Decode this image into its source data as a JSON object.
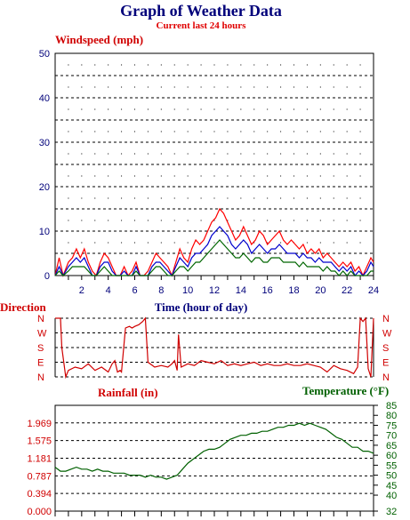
{
  "header": {
    "title": "Graph of Weather Data",
    "subtitle": "Current last 24 hours"
  },
  "colors": {
    "gust": "#ff0000",
    "average": "#0000cc",
    "minimum": "#006600",
    "direction": "#d00000",
    "temperature": "#006000",
    "axis_blue": "#00007a"
  },
  "chart_data": [
    {
      "type": "line",
      "ylabel": "Windspeed (mph)",
      "xlabel": "Time (hour of day)",
      "xlim": [
        0,
        24
      ],
      "ylim": [
        0,
        50
      ],
      "x_ticks": [
        "2",
        "4",
        "6",
        "8",
        "10",
        "12",
        "14",
        "16",
        "18",
        "20",
        "22",
        "24"
      ],
      "y_ticks": [
        "0",
        "10",
        "20",
        "30",
        "40",
        "50"
      ],
      "grid": true,
      "series": [
        {
          "color": "#ff0000",
          "x": [
            0.0,
            0.3,
            0.6,
            1.0,
            1.3,
            1.6,
            1.9,
            2.2,
            2.5,
            2.8,
            3.1,
            3.4,
            3.7,
            4.0,
            4.3,
            4.6,
            4.9,
            5.2,
            5.5,
            5.8,
            6.1,
            6.4,
            6.7,
            7.0,
            7.3,
            7.6,
            7.9,
            8.2,
            8.5,
            8.8,
            9.1,
            9.4,
            9.7,
            10.0,
            10.3,
            10.6,
            10.9,
            11.2,
            11.5,
            11.8,
            12.1,
            12.4,
            12.7,
            13.0,
            13.3,
            13.6,
            13.9,
            14.2,
            14.5,
            14.8,
            15.1,
            15.4,
            15.7,
            16.0,
            16.3,
            16.6,
            16.9,
            17.2,
            17.5,
            17.8,
            18.1,
            18.4,
            18.7,
            19.0,
            19.3,
            19.6,
            19.9,
            20.2,
            20.5,
            20.8,
            21.1,
            21.4,
            21.7,
            22.0,
            22.3,
            22.6,
            22.9,
            23.2,
            23.5,
            23.8,
            24.0
          ],
          "values": [
            0,
            4,
            0,
            3,
            4,
            6,
            4,
            6,
            3,
            1,
            0,
            3,
            5,
            4,
            2,
            0,
            0,
            2,
            0,
            1,
            3,
            0,
            0,
            1,
            3,
            5,
            4,
            3,
            2,
            0,
            3,
            6,
            4,
            3,
            6,
            8,
            7,
            8,
            10,
            12,
            13,
            15,
            14,
            12,
            10,
            8,
            9,
            11,
            9,
            7,
            8,
            10,
            9,
            7,
            8,
            9,
            10,
            8,
            7,
            8,
            7,
            6,
            7,
            5,
            6,
            5,
            6,
            4,
            5,
            4,
            3,
            2,
            3,
            2,
            3,
            1,
            2,
            0,
            2,
            4,
            3
          ]
        },
        {
          "color": "#0000cc",
          "x": [
            0.0,
            0.3,
            0.6,
            1.0,
            1.3,
            1.6,
            1.9,
            2.2,
            2.5,
            2.8,
            3.1,
            3.4,
            3.7,
            4.0,
            4.3,
            4.6,
            4.9,
            5.2,
            5.5,
            5.8,
            6.1,
            6.4,
            6.7,
            7.0,
            7.3,
            7.6,
            7.9,
            8.2,
            8.5,
            8.8,
            9.1,
            9.4,
            9.7,
            10.0,
            10.3,
            10.6,
            10.9,
            11.2,
            11.5,
            11.8,
            12.1,
            12.4,
            12.7,
            13.0,
            13.3,
            13.6,
            13.9,
            14.2,
            14.5,
            14.8,
            15.1,
            15.4,
            15.7,
            16.0,
            16.3,
            16.6,
            16.9,
            17.2,
            17.5,
            17.8,
            18.1,
            18.4,
            18.7,
            19.0,
            19.3,
            19.6,
            19.9,
            20.2,
            20.5,
            20.8,
            21.1,
            21.4,
            21.7,
            22.0,
            22.3,
            22.6,
            22.9,
            23.2,
            23.5,
            23.8,
            24.0
          ],
          "values": [
            0,
            2,
            0,
            2,
            3,
            4,
            3,
            4,
            2,
            0,
            0,
            2,
            3,
            3,
            1,
            0,
            0,
            1,
            0,
            0,
            2,
            0,
            0,
            0,
            2,
            3,
            3,
            2,
            1,
            0,
            2,
            4,
            3,
            2,
            4,
            5,
            5,
            6,
            7,
            9,
            10,
            11,
            10,
            9,
            7,
            6,
            7,
            8,
            7,
            5,
            6,
            7,
            6,
            5,
            6,
            6,
            7,
            6,
            5,
            5,
            5,
            4,
            5,
            4,
            4,
            3,
            4,
            3,
            3,
            3,
            2,
            1,
            2,
            1,
            2,
            0,
            1,
            0,
            1,
            3,
            2
          ]
        },
        {
          "color": "#006600",
          "x": [
            0.0,
            0.3,
            0.6,
            1.0,
            1.3,
            1.6,
            1.9,
            2.2,
            2.5,
            2.8,
            3.1,
            3.4,
            3.7,
            4.0,
            4.3,
            4.6,
            4.9,
            5.2,
            5.5,
            5.8,
            6.1,
            6.4,
            6.7,
            7.0,
            7.3,
            7.6,
            7.9,
            8.2,
            8.5,
            8.8,
            9.1,
            9.4,
            9.7,
            10.0,
            10.3,
            10.6,
            10.9,
            11.2,
            11.5,
            11.8,
            12.1,
            12.4,
            12.7,
            13.0,
            13.3,
            13.6,
            13.9,
            14.2,
            14.5,
            14.8,
            15.1,
            15.4,
            15.7,
            16.0,
            16.3,
            16.6,
            16.9,
            17.2,
            17.5,
            17.8,
            18.1,
            18.4,
            18.7,
            19.0,
            19.3,
            19.6,
            19.9,
            20.2,
            20.5,
            20.8,
            21.1,
            21.4,
            21.7,
            22.0,
            22.3,
            22.6,
            22.9,
            23.2,
            23.5,
            23.8,
            24.0
          ],
          "values": [
            0,
            1,
            0,
            1,
            2,
            2,
            2,
            2,
            1,
            0,
            0,
            1,
            2,
            1,
            0,
            0,
            0,
            0,
            0,
            0,
            1,
            0,
            0,
            0,
            1,
            2,
            2,
            1,
            0,
            0,
            1,
            2,
            2,
            1,
            2,
            3,
            3,
            4,
            5,
            6,
            7,
            8,
            7,
            6,
            5,
            4,
            4,
            5,
            4,
            3,
            4,
            4,
            3,
            3,
            4,
            4,
            4,
            3,
            3,
            3,
            3,
            2,
            3,
            2,
            2,
            2,
            2,
            1,
            2,
            1,
            1,
            0,
            1,
            0,
            1,
            0,
            0,
            0,
            0,
            1,
            1
          ]
        }
      ]
    },
    {
      "type": "line",
      "ylabel": "Direction",
      "xlim": [
        0,
        24
      ],
      "y_ticks": [
        "N",
        "W",
        "S",
        "E",
        "N"
      ],
      "grid": true,
      "series": [
        {
          "color": "#d00000",
          "x": [
            0.0,
            0.4,
            0.5,
            0.8,
            1.0,
            1.5,
            2.0,
            2.5,
            3.0,
            3.5,
            4.0,
            4.3,
            4.5,
            4.7,
            4.9,
            5.0,
            5.3,
            5.6,
            5.8,
            6.0,
            6.3,
            6.6,
            6.8,
            7.0,
            7.5,
            8.0,
            8.5,
            8.8,
            9.0,
            9.2,
            9.3,
            9.5,
            10.0,
            10.5,
            11.0,
            11.5,
            12.0,
            12.5,
            13.0,
            13.5,
            14.0,
            14.5,
            15.0,
            15.5,
            16.0,
            16.5,
            17.0,
            17.5,
            18.0,
            18.5,
            19.0,
            19.5,
            20.0,
            20.5,
            21.0,
            21.5,
            22.0,
            22.5,
            22.8,
            23.0,
            23.2,
            23.4,
            23.6,
            23.8,
            24.0
          ],
          "values": [
            360,
            360,
            180,
            0,
            40,
            60,
            50,
            80,
            40,
            60,
            30,
            80,
            100,
            30,
            40,
            30,
            300,
            310,
            300,
            310,
            320,
            340,
            360,
            90,
            60,
            70,
            60,
            80,
            100,
            40,
            260,
            60,
            80,
            70,
            100,
            90,
            80,
            100,
            70,
            80,
            70,
            80,
            90,
            70,
            80,
            70,
            70,
            80,
            70,
            70,
            80,
            70,
            60,
            30,
            70,
            50,
            40,
            20,
            60,
            360,
            340,
            360,
            50,
            0,
            360
          ]
        }
      ]
    },
    {
      "type": "line",
      "ylabel": "Rainfall (in)",
      "y2label": "Temperature (°F)",
      "xlim": [
        0,
        24
      ],
      "ylim": [
        0,
        2.362
      ],
      "y2lim": [
        32,
        85
      ],
      "y_ticks": [
        "0.000",
        "0.394",
        "0.787",
        "1.181",
        "1.575",
        "1.969"
      ],
      "y2_ticks": [
        "32",
        "40",
        "45",
        "50",
        "55",
        "60",
        "65",
        "70",
        "75",
        "80",
        "85"
      ],
      "grid": true,
      "series": [
        {
          "color": "#006000",
          "axis": "right",
          "x": [
            0.0,
            0.4,
            0.8,
            1.2,
            1.6,
            2.0,
            2.4,
            2.8,
            3.2,
            3.6,
            4.0,
            4.4,
            4.8,
            5.2,
            5.6,
            6.0,
            6.4,
            6.8,
            7.2,
            7.6,
            8.0,
            8.4,
            8.8,
            9.2,
            9.6,
            10.0,
            10.4,
            10.8,
            11.2,
            11.6,
            12.0,
            12.4,
            12.8,
            13.2,
            13.6,
            14.0,
            14.4,
            14.8,
            15.2,
            15.6,
            16.0,
            16.4,
            16.8,
            17.2,
            17.6,
            18.0,
            18.4,
            18.8,
            19.2,
            19.6,
            20.0,
            20.4,
            20.8,
            21.2,
            21.6,
            22.0,
            22.4,
            22.8,
            23.2,
            23.6,
            24.0
          ],
          "values": [
            54,
            52,
            52,
            53,
            54,
            53,
            53,
            52,
            53,
            52,
            52,
            51,
            51,
            51,
            50,
            50,
            50,
            49,
            50,
            49,
            49,
            48,
            49,
            50,
            53,
            56,
            58,
            60,
            62,
            63,
            63,
            64,
            66,
            68,
            69,
            70,
            70,
            71,
            71,
            72,
            72,
            73,
            74,
            74,
            75,
            75,
            76,
            75,
            76,
            75,
            74,
            73,
            71,
            69,
            68,
            66,
            64,
            64,
            62,
            62,
            61
          ]
        }
      ]
    }
  ]
}
